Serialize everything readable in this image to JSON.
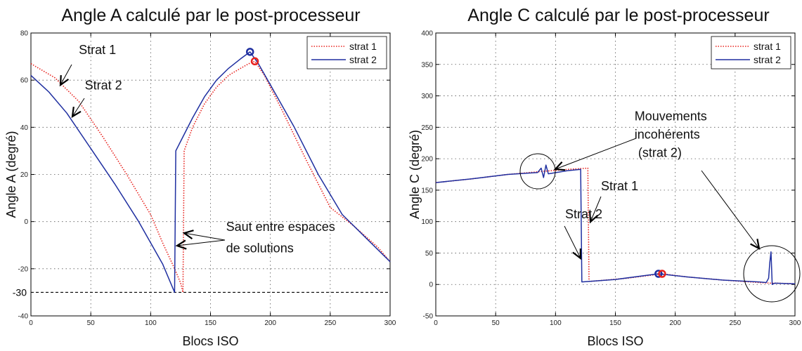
{
  "chart_data": [
    {
      "type": "line",
      "title": "Angle A calculé par le post-processeur",
      "xlabel": "Blocs ISO",
      "ylabel": "Angle A (degré)",
      "xlim": [
        0,
        300
      ],
      "ylim": [
        -40,
        80
      ],
      "xticks": [
        0,
        50,
        100,
        150,
        200,
        250,
        300
      ],
      "yticks": [
        -40,
        -20,
        0,
        20,
        40,
        60,
        80
      ],
      "grid": true,
      "legend_position": "top-right",
      "series": [
        {
          "name": "strat 1",
          "color": "#e8231f",
          "style": "dotted",
          "x": [
            0,
            20,
            40,
            60,
            80,
            100,
            110,
            120,
            125,
            127,
            128,
            135,
            145,
            155,
            165,
            175,
            182,
            187,
            195,
            210,
            230,
            250,
            270,
            290,
            300
          ],
          "y": [
            67,
            61,
            51,
            36,
            20,
            3,
            -9,
            -20,
            -26,
            -30,
            30,
            40,
            50,
            57,
            62,
            65,
            67,
            68,
            62,
            47,
            26,
            6,
            -2,
            -11,
            -17
          ]
        },
        {
          "name": "strat 2",
          "color": "#1f2fa0",
          "style": "solid",
          "x": [
            0,
            15,
            30,
            50,
            70,
            90,
            110,
            120,
            121,
            125,
            135,
            145,
            155,
            165,
            175,
            183,
            190,
            200,
            220,
            240,
            260,
            280,
            300
          ],
          "y": [
            62,
            55,
            46,
            31,
            16,
            0,
            -18,
            -30,
            30,
            34,
            44,
            53,
            60,
            65,
            69,
            72,
            67,
            58,
            40,
            20,
            3,
            -7,
            -17
          ]
        }
      ],
      "markers": [
        {
          "series": "strat 2",
          "x": 183,
          "y": 72
        },
        {
          "series": "strat 1",
          "x": 187,
          "y": 68
        }
      ],
      "reference_line": {
        "y": -30,
        "label": "-30"
      },
      "annotations": [
        {
          "text": "Strat 1",
          "x": 40,
          "y": 71
        },
        {
          "text": "Strat 2",
          "x": 45,
          "y": 56
        },
        {
          "text": "Saut entre espaces",
          "x": 163,
          "y": -4
        },
        {
          "text": "de solutions",
          "x": 163,
          "y": -13
        }
      ]
    },
    {
      "type": "line",
      "title": "Angle C calculé par le post-processeur",
      "xlabel": "Blocs ISO",
      "ylabel": "Angle C (degré)",
      "xlim": [
        0,
        300
      ],
      "ylim": [
        -50,
        400
      ],
      "xticks": [
        0,
        50,
        100,
        150,
        200,
        250,
        300
      ],
      "yticks": [
        -50,
        0,
        50,
        100,
        150,
        200,
        250,
        300,
        350,
        400
      ],
      "grid": true,
      "legend_position": "top-right",
      "series": [
        {
          "name": "strat 1",
          "color": "#e8231f",
          "style": "dotted",
          "x": [
            0,
            30,
            60,
            90,
            110,
            127,
            128,
            130,
            160,
            189,
            210,
            240,
            270,
            280,
            285,
            300
          ],
          "y": [
            162,
            168,
            175,
            180,
            183,
            185,
            5,
            5,
            10,
            17,
            12,
            7,
            3,
            2,
            2,
            1
          ]
        },
        {
          "name": "strat 2",
          "color": "#1f2fa0",
          "style": "solid",
          "x": [
            0,
            30,
            60,
            85,
            88,
            90,
            92,
            94,
            110,
            121,
            122,
            150,
            186,
            210,
            240,
            270,
            276,
            278,
            279,
            280,
            281,
            283,
            300
          ],
          "y": [
            162,
            168,
            175,
            178,
            185,
            170,
            190,
            176,
            181,
            183,
            4,
            8,
            17,
            12,
            7,
            4,
            3,
            10,
            35,
            52,
            0,
            2,
            1
          ]
        }
      ],
      "markers": [
        {
          "series": "strat 2",
          "x": 186,
          "y": 17
        },
        {
          "series": "strat 1",
          "x": 189,
          "y": 17
        }
      ],
      "annotations": [
        {
          "text": "Mouvements",
          "x": 166,
          "y": 261
        },
        {
          "text": "incohérents",
          "x": 166,
          "y": 232
        },
        {
          "text": "(strat 2)",
          "x": 169,
          "y": 203
        },
        {
          "text": "Strat 1",
          "x": 138,
          "y": 150
        },
        {
          "text": "Strat 2",
          "x": 108,
          "y": 105
        }
      ]
    }
  ]
}
